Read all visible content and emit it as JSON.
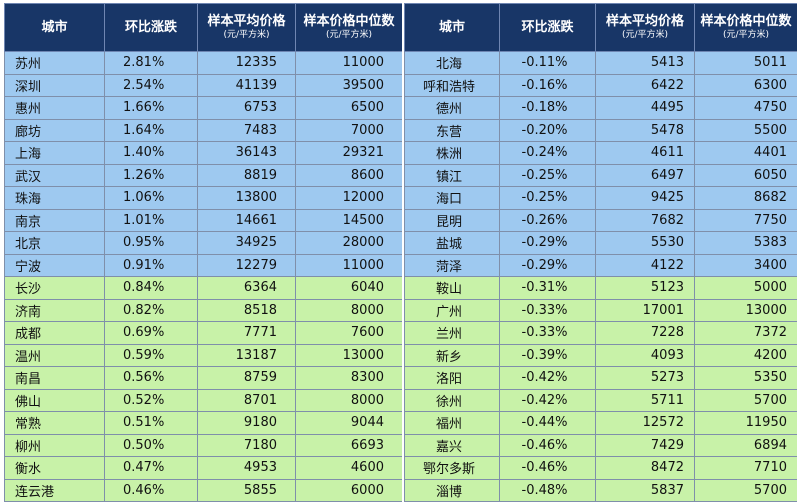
{
  "headers": {
    "city": "城市",
    "change": "环比涨跌",
    "avg": "样本平均价格",
    "avg_unit": "(元/平方米)",
    "median": "样本价格中位数",
    "median_unit": "(元/平方米)"
  },
  "colors": {
    "header_bg": "#183667",
    "blue_rows": "#9ec9f0",
    "green_rows": "#c8f2a8"
  },
  "left_rows": [
    {
      "city": "苏州",
      "change": "2.81%",
      "avg": "12335",
      "median": "11000",
      "band": "blue"
    },
    {
      "city": "深圳",
      "change": "2.54%",
      "avg": "41139",
      "median": "39500",
      "band": "blue"
    },
    {
      "city": "惠州",
      "change": "1.66%",
      "avg": "6753",
      "median": "6500",
      "band": "blue"
    },
    {
      "city": "廊坊",
      "change": "1.64%",
      "avg": "7483",
      "median": "7000",
      "band": "blue"
    },
    {
      "city": "上海",
      "change": "1.40%",
      "avg": "36143",
      "median": "29321",
      "band": "blue"
    },
    {
      "city": "武汉",
      "change": "1.26%",
      "avg": "8819",
      "median": "8600",
      "band": "blue"
    },
    {
      "city": "珠海",
      "change": "1.06%",
      "avg": "13800",
      "median": "12000",
      "band": "blue"
    },
    {
      "city": "南京",
      "change": "1.01%",
      "avg": "14661",
      "median": "14500",
      "band": "blue"
    },
    {
      "city": "北京",
      "change": "0.95%",
      "avg": "34925",
      "median": "28000",
      "band": "blue"
    },
    {
      "city": "宁波",
      "change": "0.91%",
      "avg": "12279",
      "median": "11000",
      "band": "blue"
    },
    {
      "city": "长沙",
      "change": "0.84%",
      "avg": "6364",
      "median": "6040",
      "band": "green"
    },
    {
      "city": "济南",
      "change": "0.82%",
      "avg": "8518",
      "median": "8000",
      "band": "green"
    },
    {
      "city": "成都",
      "change": "0.69%",
      "avg": "7771",
      "median": "7600",
      "band": "green"
    },
    {
      "city": "温州",
      "change": "0.59%",
      "avg": "13187",
      "median": "13000",
      "band": "green"
    },
    {
      "city": "南昌",
      "change": "0.56%",
      "avg": "8759",
      "median": "8300",
      "band": "green"
    },
    {
      "city": "佛山",
      "change": "0.52%",
      "avg": "8701",
      "median": "8000",
      "band": "green"
    },
    {
      "city": "常熟",
      "change": "0.51%",
      "avg": "9180",
      "median": "9044",
      "band": "green"
    },
    {
      "city": "柳州",
      "change": "0.50%",
      "avg": "7180",
      "median": "6693",
      "band": "green"
    },
    {
      "city": "衡水",
      "change": "0.47%",
      "avg": "4953",
      "median": "4600",
      "band": "green"
    },
    {
      "city": "连云港",
      "change": "0.46%",
      "avg": "5855",
      "median": "6000",
      "band": "green"
    }
  ],
  "right_rows": [
    {
      "city": "北海",
      "change": "-0.11%",
      "avg": "5413",
      "median": "5011",
      "band": "blue"
    },
    {
      "city": "呼和浩特",
      "change": "-0.16%",
      "avg": "6422",
      "median": "6300",
      "band": "blue"
    },
    {
      "city": "德州",
      "change": "-0.18%",
      "avg": "4495",
      "median": "4750",
      "band": "blue"
    },
    {
      "city": "东营",
      "change": "-0.20%",
      "avg": "5478",
      "median": "5500",
      "band": "blue"
    },
    {
      "city": "株洲",
      "change": "-0.24%",
      "avg": "4611",
      "median": "4401",
      "band": "blue"
    },
    {
      "city": "镇江",
      "change": "-0.25%",
      "avg": "6497",
      "median": "6050",
      "band": "blue"
    },
    {
      "city": "海口",
      "change": "-0.25%",
      "avg": "9425",
      "median": "8682",
      "band": "blue"
    },
    {
      "city": "昆明",
      "change": "-0.26%",
      "avg": "7682",
      "median": "7750",
      "band": "blue"
    },
    {
      "city": "盐城",
      "change": "-0.29%",
      "avg": "5530",
      "median": "5383",
      "band": "blue"
    },
    {
      "city": "菏泽",
      "change": "-0.29%",
      "avg": "4122",
      "median": "3400",
      "band": "blue"
    },
    {
      "city": "鞍山",
      "change": "-0.31%",
      "avg": "5123",
      "median": "5000",
      "band": "green"
    },
    {
      "city": "广州",
      "change": "-0.33%",
      "avg": "17001",
      "median": "13000",
      "band": "green"
    },
    {
      "city": "兰州",
      "change": "-0.33%",
      "avg": "7228",
      "median": "7372",
      "band": "green"
    },
    {
      "city": "新乡",
      "change": "-0.39%",
      "avg": "4093",
      "median": "4200",
      "band": "green"
    },
    {
      "city": "洛阳",
      "change": "-0.42%",
      "avg": "5273",
      "median": "5350",
      "band": "green"
    },
    {
      "city": "徐州",
      "change": "-0.42%",
      "avg": "5711",
      "median": "5700",
      "band": "green"
    },
    {
      "city": "福州",
      "change": "-0.44%",
      "avg": "12572",
      "median": "11950",
      "band": "green"
    },
    {
      "city": "嘉兴",
      "change": "-0.46%",
      "avg": "7429",
      "median": "6894",
      "band": "green"
    },
    {
      "city": "鄂尔多斯",
      "change": "-0.46%",
      "avg": "8472",
      "median": "7710",
      "band": "green"
    },
    {
      "city": "淄博",
      "change": "-0.48%",
      "avg": "5837",
      "median": "5700",
      "band": "green"
    }
  ]
}
